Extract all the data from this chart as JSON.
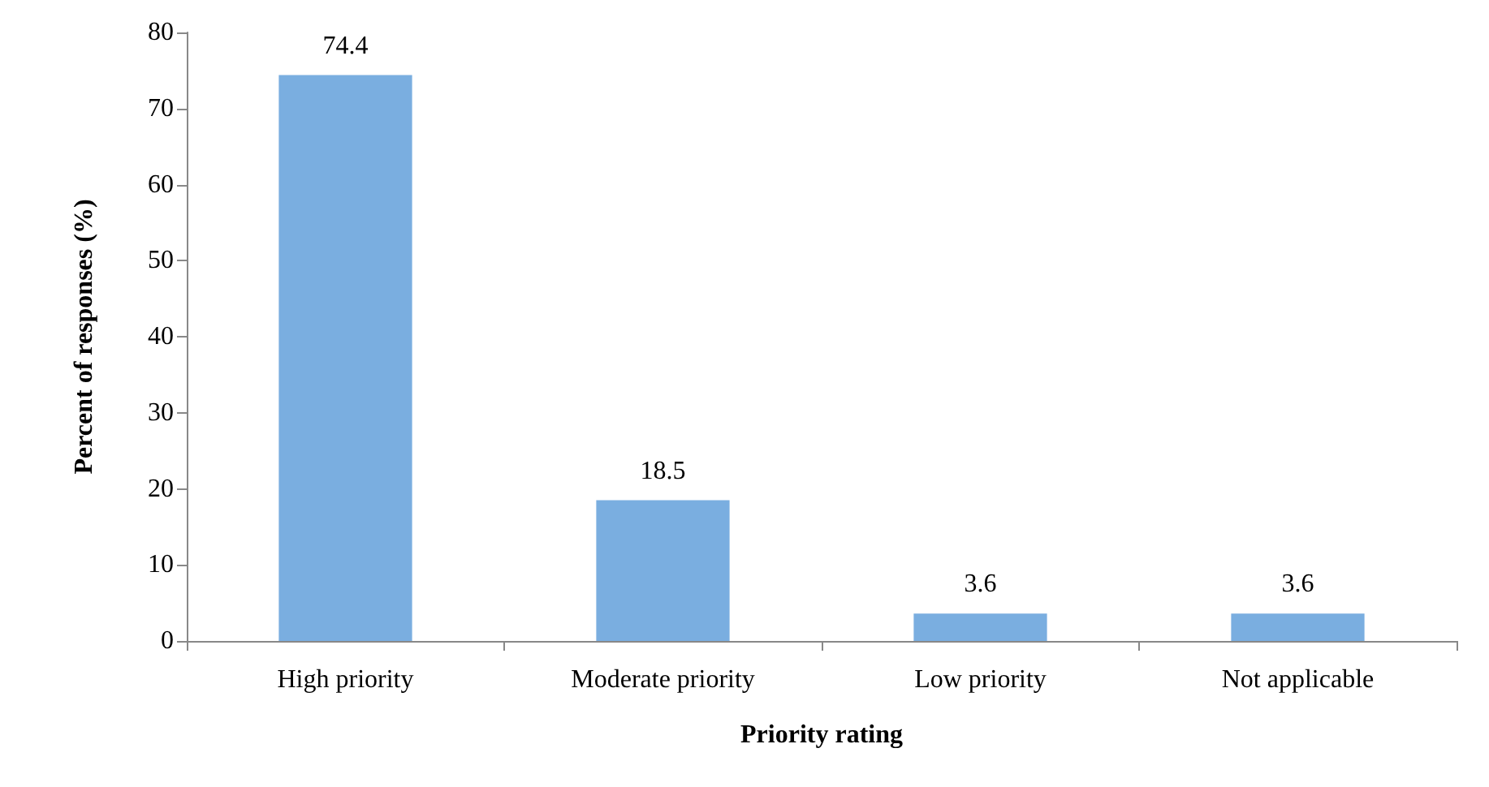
{
  "chart_data": {
    "type": "bar",
    "xlabel": "Priority rating",
    "ylabel": "Percent of responses (%)",
    "categories": [
      "High priority",
      "Moderate priority",
      "Low priority",
      "Not applicable"
    ],
    "values": [
      74.4,
      18.5,
      3.6,
      3.6
    ],
    "color": "#7aaee0",
    "ylim": [
      0,
      80
    ],
    "yticks": [
      0,
      10,
      20,
      30,
      40,
      50,
      60,
      70,
      80
    ],
    "grid": false,
    "data_labels": true
  }
}
